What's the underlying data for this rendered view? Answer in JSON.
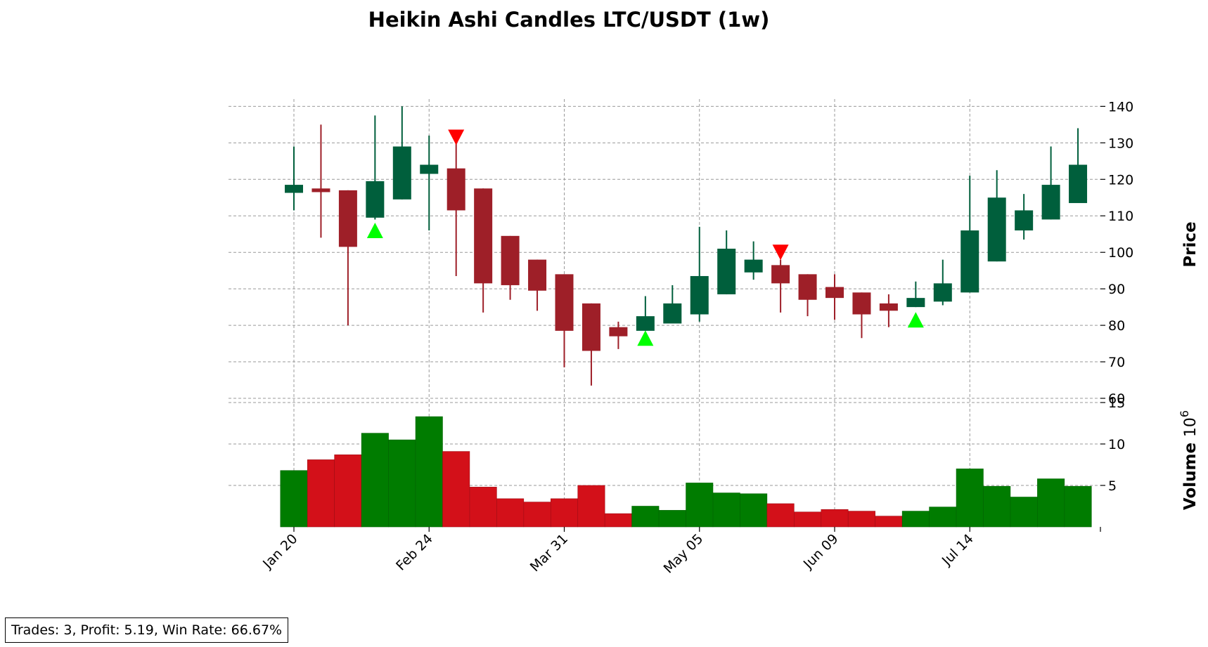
{
  "chart_data": {
    "type": "candlestick",
    "title": "Heikin Ashi Candles LTC/USDT (1w)",
    "price_axis": {
      "label": "Price",
      "ticks": [
        140,
        130,
        120,
        110,
        100,
        90,
        80,
        70,
        60
      ],
      "tick_labels": [
        "140",
        "130",
        "120",
        "110",
        "100",
        "90",
        "80",
        "70",
        "60"
      ],
      "range": [
        60,
        142
      ]
    },
    "volume_axis": {
      "label": "Volume",
      "exponent_label": "10",
      "exponent_power": "6",
      "ticks": [
        15,
        10,
        5
      ],
      "tick_labels": [
        "15",
        "10",
        "5"
      ],
      "range": [
        0,
        15
      ]
    },
    "x_ticks": [
      {
        "index": 0,
        "label": "Jan 20"
      },
      {
        "index": 5,
        "label": "Feb 24"
      },
      {
        "index": 10,
        "label": "Mar 31"
      },
      {
        "index": 15,
        "label": "May 05"
      },
      {
        "index": 20,
        "label": "Jun 09"
      },
      {
        "index": 25,
        "label": "Jul 14"
      }
    ],
    "colors": {
      "up_candle": "#005f3c",
      "down_candle": "#9e1f28",
      "up_volume": "#007c00",
      "down_volume": "#d31019",
      "buy_marker": "#00ff00",
      "sell_marker": "#ff0000",
      "grid": "#999999"
    },
    "candles": [
      {
        "open": 116.3,
        "close": 118.5,
        "high": 129.0,
        "low": 111.5
      },
      {
        "open": 117.5,
        "close": 116.5,
        "high": 135.0,
        "low": 104.0
      },
      {
        "open": 117.0,
        "close": 101.5,
        "high": 117.0,
        "low": 80.0
      },
      {
        "open": 109.5,
        "close": 119.5,
        "high": 137.5,
        "low": 109.0
      },
      {
        "open": 114.5,
        "close": 129.0,
        "high": 140.0,
        "low": 114.5
      },
      {
        "open": 121.5,
        "close": 124.0,
        "high": 132.0,
        "low": 106.0
      },
      {
        "open": 123.0,
        "close": 111.5,
        "high": 130.0,
        "low": 93.5
      },
      {
        "open": 117.5,
        "close": 91.5,
        "high": 117.5,
        "low": 83.5
      },
      {
        "open": 104.5,
        "close": 91.0,
        "high": 104.5,
        "low": 87.0
      },
      {
        "open": 98.0,
        "close": 89.5,
        "high": 98.0,
        "low": 84.0
      },
      {
        "open": 94.0,
        "close": 78.5,
        "high": 94.0,
        "low": 68.5
      },
      {
        "open": 86.0,
        "close": 73.0,
        "high": 86.0,
        "low": 63.5
      },
      {
        "open": 79.5,
        "close": 77.0,
        "high": 81.0,
        "low": 73.5
      },
      {
        "open": 78.5,
        "close": 82.5,
        "high": 88.0,
        "low": 78.5
      },
      {
        "open": 80.5,
        "close": 86.0,
        "high": 91.0,
        "low": 80.5
      },
      {
        "open": 83.0,
        "close": 93.5,
        "high": 107.0,
        "low": 81.0
      },
      {
        "open": 88.5,
        "close": 101.0,
        "high": 106.0,
        "low": 88.5
      },
      {
        "open": 94.5,
        "close": 98.0,
        "high": 103.0,
        "low": 92.5
      },
      {
        "open": 96.5,
        "close": 91.5,
        "high": 98.0,
        "low": 83.5
      },
      {
        "open": 94.0,
        "close": 87.0,
        "high": 94.0,
        "low": 82.5
      },
      {
        "open": 90.5,
        "close": 87.5,
        "high": 94.0,
        "low": 81.5
      },
      {
        "open": 89.0,
        "close": 83.0,
        "high": 89.0,
        "low": 76.5
      },
      {
        "open": 86.0,
        "close": 84.0,
        "high": 88.5,
        "low": 79.5
      },
      {
        "open": 85.0,
        "close": 87.5,
        "high": 92.0,
        "low": 85.0
      },
      {
        "open": 86.5,
        "close": 91.5,
        "high": 98.0,
        "low": 85.5
      },
      {
        "open": 89.0,
        "close": 106.0,
        "high": 121.0,
        "low": 89.0
      },
      {
        "open": 97.5,
        "close": 115.0,
        "high": 122.5,
        "low": 97.5
      },
      {
        "open": 106.0,
        "close": 111.5,
        "high": 116.0,
        "low": 103.5
      },
      {
        "open": 109.0,
        "close": 118.5,
        "high": 129.0,
        "low": 109.0
      },
      {
        "open": 113.5,
        "close": 124.0,
        "high": 134.0,
        "low": 113.5
      }
    ],
    "volumes": [
      6.8,
      8.1,
      8.7,
      11.3,
      10.5,
      13.3,
      9.1,
      4.8,
      3.4,
      3.0,
      3.4,
      5.0,
      1.6,
      2.5,
      2.0,
      5.3,
      4.1,
      4.0,
      2.8,
      1.8,
      2.1,
      1.9,
      1.3,
      1.9,
      2.4,
      7.0,
      4.9,
      3.6,
      5.8,
      4.9
    ],
    "signals": [
      {
        "index": 3,
        "type": "buy",
        "price": 106.0
      },
      {
        "index": 6,
        "type": "sell",
        "price": 131.5
      },
      {
        "index": 13,
        "type": "buy",
        "price": 76.5
      },
      {
        "index": 18,
        "type": "sell",
        "price": 100.0
      },
      {
        "index": 23,
        "type": "buy",
        "price": 81.5
      }
    ]
  },
  "summary": {
    "text": "Trades: 3, Profit: 5.19, Win Rate: 66.67%"
  }
}
